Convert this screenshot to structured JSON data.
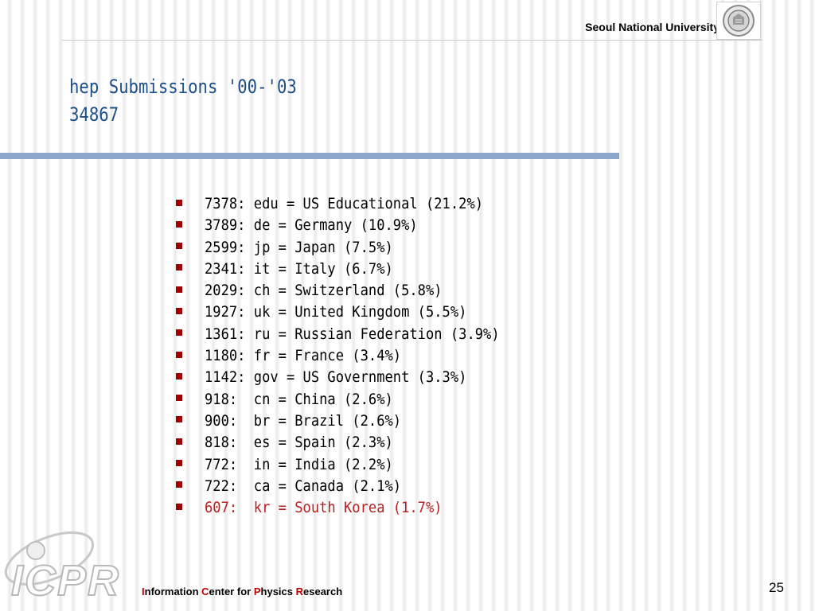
{
  "header": {
    "university": "Seoul National University"
  },
  "slide": {
    "title_lines": [
      "hep Submissions '00-'03",
      "34867"
    ],
    "items": [
      {
        "text": "7378: edu = US Educational (21.2%)"
      },
      {
        "text": "3789: de = Germany (10.9%)"
      },
      {
        "text": "2599: jp = Japan (7.5%)"
      },
      {
        "text": "2341: it = Italy (6.7%)"
      },
      {
        "text": "2029: ch = Switzerland (5.8%)"
      },
      {
        "text": "1927: uk = United Kingdom (5.5%)"
      },
      {
        "text": "1361: ru = Russian Federation (3.9%)"
      },
      {
        "text": "1180: fr = France (3.4%)"
      },
      {
        "text": "1142: gov = US Government (3.3%)"
      },
      {
        "text": "918:  cn = China (2.6%)"
      },
      {
        "text": "900:  br = Brazil (2.6%)"
      },
      {
        "text": "818:  es = Spain (2.3%)"
      },
      {
        "text": "772:  in = India (2.2%)"
      },
      {
        "text": "722:  ca = Canada (2.1%)"
      },
      {
        "text": "607:  kr = South Korea (1.7%)",
        "highlight": true
      }
    ]
  },
  "footer": {
    "logo_text": "ICPR",
    "words": [
      {
        "cap": "I",
        "rest": "nformation "
      },
      {
        "cap": "C",
        "rest": "enter for "
      },
      {
        "cap": "P",
        "rest": "hysics "
      },
      {
        "cap": "R",
        "rest": "esearch"
      }
    ],
    "page_number": "25"
  },
  "colors": {
    "title": "#1e4f8a",
    "bullet": "#a00000",
    "highlight": "#b81f1f",
    "footer_cap": "#c00000"
  }
}
